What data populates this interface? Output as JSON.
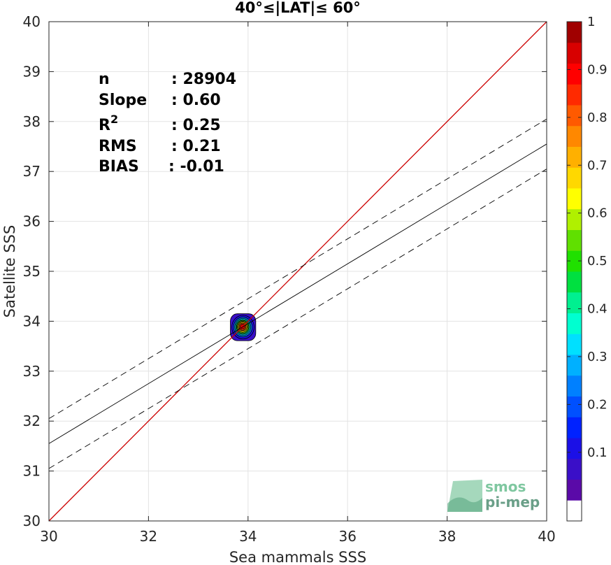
{
  "chart_data": {
    "type": "contour",
    "title": "40°≤|LAT|≤ 60°",
    "xlabel": "Sea mammals SSS",
    "ylabel": "Satellite SSS",
    "xlim": [
      30,
      40
    ],
    "ylim": [
      30,
      40
    ],
    "xticks": [
      30,
      32,
      34,
      36,
      38,
      40
    ],
    "yticks": [
      30,
      31,
      32,
      33,
      34,
      35,
      36,
      37,
      38,
      39,
      40
    ],
    "grid": true,
    "stats": [
      {
        "label": "n",
        "sep": ":",
        "value": "28904"
      },
      {
        "label": "Slope",
        "sep": ":",
        "value": "0.60"
      },
      {
        "label": "R",
        "sup": "2",
        "sep": ":",
        "value": "0.25"
      },
      {
        "label": "RMS",
        "sep": ":",
        "value": "0.21"
      },
      {
        "label": "BIAS",
        "sep": ":",
        "value": "-0.01"
      }
    ],
    "identity_line": {
      "color": "#cc0000",
      "from": [
        30,
        30
      ],
      "to": [
        40,
        40
      ]
    },
    "regression_line": {
      "slope": 0.6,
      "intercept": 13.55,
      "color": "#000000"
    },
    "confidence_lines": [
      {
        "slope": 0.6,
        "intercept": 14.05,
        "style": "dashed"
      },
      {
        "slope": 0.6,
        "intercept": 13.05,
        "style": "dashed"
      }
    ],
    "density_center": {
      "x": 33.9,
      "y": 33.88
    },
    "density_spread": {
      "x": 0.51,
      "y": 0.54
    },
    "contour_levels": [
      0.05,
      0.1,
      0.2,
      0.3,
      0.4,
      0.5,
      0.6,
      0.7,
      0.8,
      0.9
    ],
    "colorbar": {
      "ticks": [
        "0.1",
        "0.2",
        "0.3",
        "0.4",
        "0.5",
        "0.6",
        "0.7",
        "0.8",
        "0.9",
        "1"
      ],
      "colors": [
        "#ffffff",
        "#5a0aa8",
        "#3a0fc8",
        "#1b10e6",
        "#0022ff",
        "#0050ff",
        "#0080ff",
        "#00b0ff",
        "#00e0ff",
        "#00ffd0",
        "#00f090",
        "#00e040",
        "#20e000",
        "#60e000",
        "#b0f000",
        "#ffff00",
        "#ffd800",
        "#ffb000",
        "#ff8800",
        "#ff5a00",
        "#ff2a00",
        "#ff0000",
        "#d80000",
        "#a00000"
      ]
    }
  },
  "logo": {
    "line1": "smos",
    "line2": "pi-mep"
  }
}
